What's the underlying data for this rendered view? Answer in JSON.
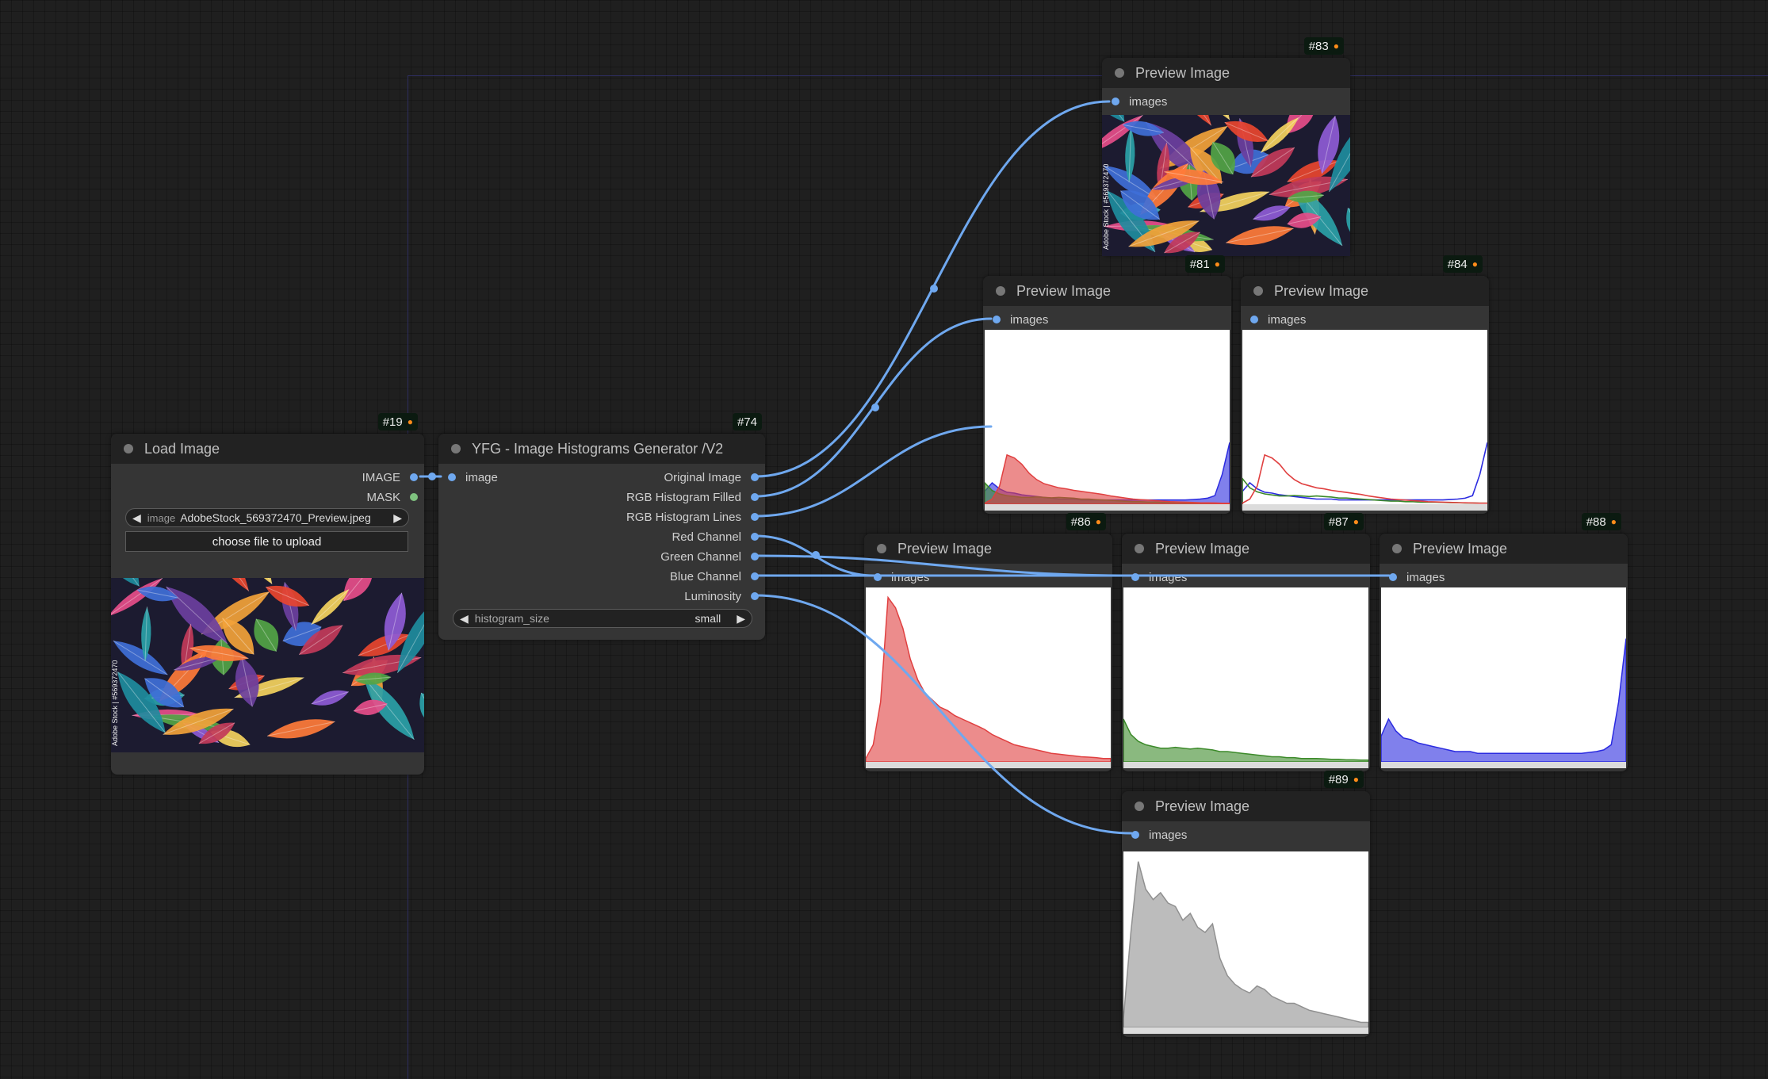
{
  "load_node": {
    "badge": "#19",
    "title": "Load Image",
    "outputs": [
      "IMAGE",
      "MASK"
    ],
    "image_widget": {
      "label": "image",
      "value": "AdobeStock_569372470_Preview.jpeg"
    },
    "upload_label": "choose file to upload",
    "watermark": "Adobe Stock | #569372470"
  },
  "gen_node": {
    "badge": "#74",
    "title": "YFG - Image Histograms Generator /V2",
    "input": "image",
    "outputs": [
      "Original Image",
      "RGB Histogram Filled",
      "RGB Histogram Lines",
      "Red Channel",
      "Green Channel",
      "Blue Channel",
      "Luminosity"
    ],
    "histogram_widget": {
      "label": "histogram_size",
      "value": "small"
    }
  },
  "preview_nodes": [
    {
      "badge": "#83",
      "title": "Preview Image",
      "input": "images",
      "content": "original"
    },
    {
      "badge": "#81",
      "title": "Preview Image",
      "input": "images",
      "content": "rgb-filled"
    },
    {
      "badge": "#84",
      "title": "Preview Image",
      "input": "images",
      "content": "rgb-lines"
    },
    {
      "badge": "#86",
      "title": "Preview Image",
      "input": "images",
      "content": "red"
    },
    {
      "badge": "#87",
      "title": "Preview Image",
      "input": "images",
      "content": "green"
    },
    {
      "badge": "#88",
      "title": "Preview Image",
      "input": "images",
      "content": "blue"
    },
    {
      "badge": "#89",
      "title": "Preview Image",
      "input": "images",
      "content": "luminosity"
    }
  ],
  "colors": {
    "canvas": "#1f1f1f",
    "node": "#353535",
    "link": "#6fa8ef",
    "red": "#e04040",
    "green": "#3c8a2a",
    "blue": "#2b2be0",
    "lum": "#909090"
  },
  "histograms": {
    "red": [
      0.02,
      0.1,
      0.35,
      0.96,
      0.9,
      0.78,
      0.6,
      0.48,
      0.4,
      0.36,
      0.32,
      0.3,
      0.27,
      0.25,
      0.23,
      0.21,
      0.19,
      0.16,
      0.14,
      0.12,
      0.1,
      0.09,
      0.08,
      0.07,
      0.06,
      0.05,
      0.045,
      0.04,
      0.035,
      0.03,
      0.028,
      0.025,
      0.02,
      0.02
    ],
    "green": [
      0.25,
      0.16,
      0.12,
      0.1,
      0.09,
      0.08,
      0.08,
      0.085,
      0.08,
      0.075,
      0.08,
      0.075,
      0.07,
      0.06,
      0.06,
      0.055,
      0.05,
      0.045,
      0.04,
      0.035,
      0.03,
      0.03,
      0.025,
      0.025,
      0.02,
      0.02,
      0.02,
      0.018,
      0.015,
      0.015,
      0.012,
      0.012,
      0.01,
      0.01
    ],
    "blue": [
      0.15,
      0.25,
      0.18,
      0.14,
      0.13,
      0.11,
      0.1,
      0.09,
      0.08,
      0.07,
      0.06,
      0.06,
      0.06,
      0.05,
      0.05,
      0.05,
      0.05,
      0.05,
      0.05,
      0.05,
      0.05,
      0.05,
      0.05,
      0.05,
      0.05,
      0.05,
      0.05,
      0.05,
      0.055,
      0.06,
      0.07,
      0.1,
      0.35,
      0.72
    ],
    "luminosity": [
      0.05,
      0.55,
      0.96,
      0.8,
      0.74,
      0.78,
      0.72,
      0.7,
      0.62,
      0.66,
      0.58,
      0.55,
      0.6,
      0.4,
      0.3,
      0.25,
      0.22,
      0.2,
      0.24,
      0.22,
      0.18,
      0.16,
      0.14,
      0.14,
      0.12,
      0.1,
      0.09,
      0.08,
      0.07,
      0.06,
      0.05,
      0.04,
      0.03,
      0.03
    ]
  }
}
